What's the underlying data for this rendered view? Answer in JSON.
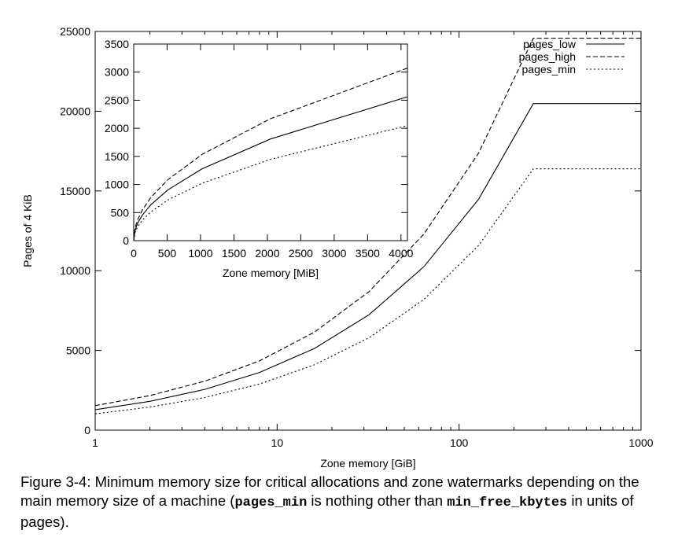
{
  "chart_data": [
    {
      "type": "line",
      "xscale": "log",
      "xlabel": "Zone memory [GiB]",
      "ylabel": "Pages of 4 KiB",
      "xlim": [
        1,
        1000
      ],
      "ylim": [
        0,
        25000
      ],
      "x_ticks": [
        1,
        10,
        100,
        1000
      ],
      "x_tick_labels": [
        "1",
        "10",
        "100",
        "1000"
      ],
      "y_ticks": [
        0,
        5000,
        10000,
        15000,
        20000,
        25000
      ],
      "y_tick_labels": [
        "0",
        "5000",
        "10000",
        "15000",
        "20000",
        "25000"
      ],
      "legend_position": "top-right",
      "grid": false,
      "series": [
        {
          "name": "pages_low",
          "style": "solid",
          "x": [
            1,
            2,
            4,
            8,
            16,
            32,
            64,
            128,
            256,
            1000
          ],
          "y": [
            1280,
            1810,
            2560,
            3620,
            5120,
            7240,
            10240,
            14480,
            20480,
            20480
          ]
        },
        {
          "name": "pages_high",
          "style": "dashed",
          "x": [
            1,
            2,
            4,
            8,
            16,
            32,
            64,
            128,
            256,
            1000
          ],
          "y": [
            1536,
            2172,
            3072,
            4344,
            6144,
            8688,
            12288,
            17376,
            24576,
            24576
          ]
        },
        {
          "name": "pages_min",
          "style": "dotted",
          "x": [
            1,
            2,
            4,
            8,
            16,
            32,
            64,
            128,
            256,
            1000
          ],
          "y": [
            1024,
            1448,
            2048,
            2896,
            4096,
            5792,
            8192,
            11584,
            16384,
            16384
          ]
        }
      ]
    },
    {
      "type": "line",
      "xlabel": "Zone memory [MiB]",
      "ylabel": "",
      "xlim": [
        0,
        4096
      ],
      "ylim": [
        0,
        3500
      ],
      "x_ticks": [
        0,
        500,
        1000,
        1500,
        2000,
        2500,
        3000,
        3500,
        4000
      ],
      "x_tick_labels": [
        "0",
        "500",
        "1000",
        "1500",
        "2000",
        "2500",
        "3000",
        "3500",
        "4000"
      ],
      "y_ticks": [
        0,
        500,
        1000,
        1500,
        2000,
        2500,
        3000,
        3500
      ],
      "y_tick_labels": [
        "0",
        "500",
        "1000",
        "1500",
        "2000",
        "2500",
        "3000",
        "3500"
      ],
      "series": [
        {
          "name": "pages_low",
          "style": "solid",
          "x": [
            0,
            16,
            32,
            64,
            128,
            256,
            512,
            1024,
            2048,
            4096
          ],
          "y": [
            0,
            160,
            226,
            320,
            452,
            640,
            905,
            1280,
            1810,
            2560
          ]
        },
        {
          "name": "pages_high",
          "style": "dashed",
          "x": [
            0,
            16,
            32,
            64,
            128,
            256,
            512,
            1024,
            2048,
            4096
          ],
          "y": [
            0,
            192,
            272,
            384,
            543,
            768,
            1086,
            1536,
            2172,
            3072
          ]
        },
        {
          "name": "pages_min",
          "style": "dotted",
          "x": [
            0,
            16,
            32,
            64,
            128,
            256,
            512,
            1024,
            2048,
            4096
          ],
          "y": [
            0,
            128,
            181,
            256,
            362,
            512,
            724,
            1024,
            1448,
            2048
          ]
        }
      ]
    }
  ],
  "caption": {
    "part1": "Figure 3-4: Minimum memory size for critical allocations and zone watermarks depending on the main memory size of a machine (",
    "code1": "pages_min",
    "part2": " is nothing other than ",
    "code2": "min_free_kbytes",
    "part3": " in units of pages)."
  }
}
